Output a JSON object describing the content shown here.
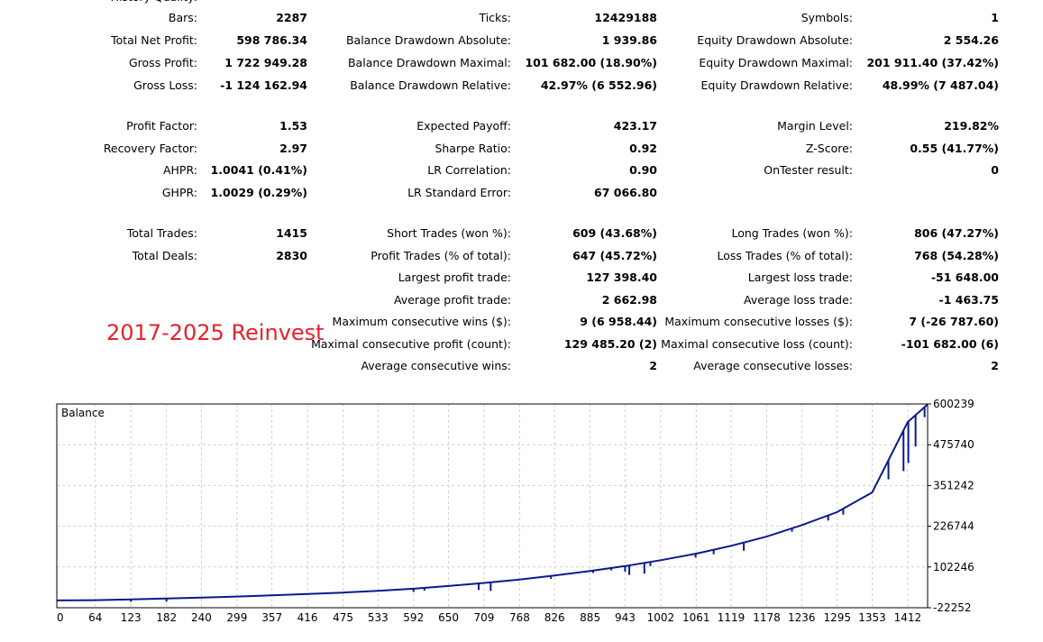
{
  "stats": {
    "truncated_top_label": "History Quality:",
    "col1": [
      {
        "label": "Bars:",
        "value": "2287"
      },
      {
        "label": "Total Net Profit:",
        "value": "598 786.34"
      },
      {
        "label": "Gross Profit:",
        "value": "1 722 949.28"
      },
      {
        "label": "Gross Loss:",
        "value": "-1 124 162.94"
      },
      {
        "label": "Profit Factor:",
        "value": "1.53"
      },
      {
        "label": "Recovery Factor:",
        "value": "2.97"
      },
      {
        "label": "AHPR:",
        "value": "1.0041 (0.41%)"
      },
      {
        "label": "GHPR:",
        "value": "1.0029 (0.29%)"
      },
      {
        "label": "Total Trades:",
        "value": "1415"
      },
      {
        "label": "Total Deals:",
        "value": "2830"
      }
    ],
    "col2": [
      {
        "label": "Ticks:",
        "value": "12429188"
      },
      {
        "label": "Balance Drawdown Absolute:",
        "value": "1 939.86"
      },
      {
        "label": "Balance Drawdown Maximal:",
        "value": "101 682.00 (18.90%)"
      },
      {
        "label": "Balance Drawdown Relative:",
        "value": "42.97% (6 552.96)"
      },
      {
        "label": "Expected Payoff:",
        "value": "423.17"
      },
      {
        "label": "Sharpe Ratio:",
        "value": "0.92"
      },
      {
        "label": "LR Correlation:",
        "value": "0.90"
      },
      {
        "label": "LR Standard Error:",
        "value": "67 066.80"
      },
      {
        "label": "Short Trades (won %):",
        "value": "609 (43.68%)"
      },
      {
        "label": "Profit Trades (% of total):",
        "value": "647 (45.72%)"
      },
      {
        "label": "Largest profit trade:",
        "value": "127 398.40"
      },
      {
        "label": "Average profit trade:",
        "value": "2 662.98"
      },
      {
        "label": "Maximum consecutive wins ($):",
        "value": "9 (6 958.44)"
      },
      {
        "label": "Maximal consecutive profit (count):",
        "value": "129 485.20 (2)"
      },
      {
        "label": "Average consecutive wins:",
        "value": "2"
      }
    ],
    "col3": [
      {
        "label": "Symbols:",
        "value": "1"
      },
      {
        "label": "Equity Drawdown Absolute:",
        "value": "2 554.26"
      },
      {
        "label": "Equity Drawdown Maximal:",
        "value": "201 911.40 (37.42%)"
      },
      {
        "label": "Equity Drawdown Relative:",
        "value": "48.99% (7 487.04)"
      },
      {
        "label": "Margin Level:",
        "value": "219.82%"
      },
      {
        "label": "Z-Score:",
        "value": "0.55 (41.77%)"
      },
      {
        "label": "OnTester result:",
        "value": "0"
      },
      {
        "label": "Long Trades (won %):",
        "value": "806 (47.27%)"
      },
      {
        "label": "Loss Trades (% of total):",
        "value": "768 (54.28%)"
      },
      {
        "label": "Largest loss trade:",
        "value": "-51 648.00"
      },
      {
        "label": "Average loss trade:",
        "value": "-1 463.75"
      },
      {
        "label": "Maximum consecutive losses ($):",
        "value": "7 (-26 787.60)"
      },
      {
        "label": "Maximal consecutive loss (count):",
        "value": "-101 682.00 (6)"
      },
      {
        "label": "Average consecutive losses:",
        "value": "2"
      }
    ]
  },
  "annotation": "2017-2025 Reinvest",
  "chart_data": {
    "type": "line",
    "title": "Balance",
    "xlabel": "",
    "ylabel": "",
    "x_ticks": [
      0,
      64,
      123,
      182,
      240,
      299,
      357,
      416,
      475,
      533,
      592,
      650,
      709,
      768,
      826,
      885,
      943,
      1002,
      1061,
      1119,
      1178,
      1236,
      1295,
      1353,
      1412
    ],
    "y_ticks": [
      -22252,
      102246,
      226744,
      351242,
      475740,
      600239
    ],
    "xlim": [
      0,
      1445
    ],
    "ylim": [
      -22252,
      600239
    ],
    "grid": true,
    "line_color": "#0a1a8c",
    "series": [
      {
        "values": [
          [
            0,
            0
          ],
          [
            64,
            1000
          ],
          [
            123,
            3500
          ],
          [
            182,
            6000
          ],
          [
            240,
            9000
          ],
          [
            299,
            12000
          ],
          [
            357,
            15500
          ],
          [
            416,
            19500
          ],
          [
            475,
            24000
          ],
          [
            533,
            29500
          ],
          [
            592,
            36000
          ],
          [
            650,
            44000
          ],
          [
            709,
            53500
          ],
          [
            768,
            64000
          ],
          [
            826,
            76000
          ],
          [
            885,
            90000
          ],
          [
            943,
            105000
          ],
          [
            1002,
            123000
          ],
          [
            1061,
            143000
          ],
          [
            1119,
            167000
          ],
          [
            1178,
            195000
          ],
          [
            1236,
            230000
          ],
          [
            1295,
            270000
          ],
          [
            1353,
            330000
          ],
          [
            1412,
            545000
          ],
          [
            1445,
            598786
          ]
        ],
        "drops": [
          [
            123,
            -4000
          ],
          [
            182,
            -4000
          ],
          [
            592,
            26000
          ],
          [
            610,
            30000
          ],
          [
            700,
            32000
          ],
          [
            720,
            29000
          ],
          [
            820,
            66000
          ],
          [
            890,
            84000
          ],
          [
            920,
            92000
          ],
          [
            943,
            88000
          ],
          [
            950,
            78000
          ],
          [
            975,
            82000
          ],
          [
            985,
            105000
          ],
          [
            1060,
            131000
          ],
          [
            1090,
            141000
          ],
          [
            1140,
            152000
          ],
          [
            1220,
            210000
          ],
          [
            1280,
            244000
          ],
          [
            1305,
            262000
          ],
          [
            1380,
            370000
          ],
          [
            1405,
            395000
          ],
          [
            1413,
            420000
          ],
          [
            1425,
            470000
          ],
          [
            1440,
            560000
          ]
        ]
      }
    ]
  }
}
